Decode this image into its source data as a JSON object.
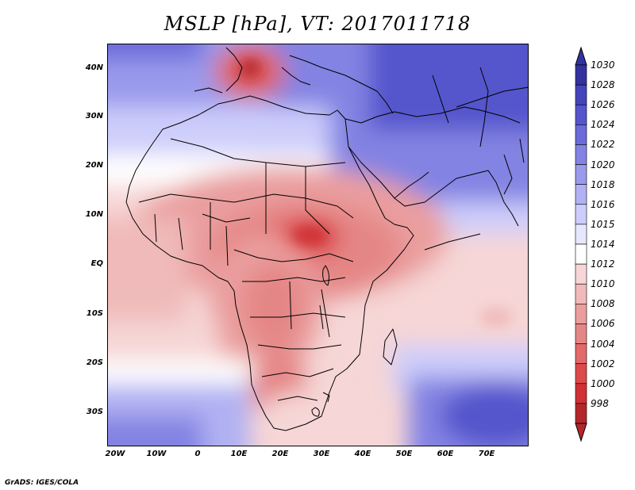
{
  "title": "MSLP [hPa], VT: 2017011718",
  "credit": "GrADS: IGES/COLA",
  "latitude_labels": [
    "40N",
    "30N",
    "20N",
    "10N",
    "EQ",
    "10S",
    "20S",
    "30S"
  ],
  "longitude_labels": [
    "20W",
    "10W",
    "0",
    "10E",
    "20E",
    "30E",
    "40E",
    "50E",
    "60E",
    "70E"
  ],
  "colorbar": {
    "levels": [
      998,
      1000,
      1002,
      1004,
      1006,
      1008,
      1010,
      1012,
      1014,
      1015,
      1016,
      1018,
      1020,
      1022,
      1024,
      1026,
      1028,
      1030
    ],
    "labels": [
      "998",
      "1000",
      "1002",
      "1004",
      "1006",
      "1008",
      "1010",
      "1012",
      "1014",
      "1015",
      "1016",
      "1018",
      "1020",
      "1022",
      "1024",
      "1026",
      "1028",
      "1030"
    ],
    "colors": [
      "#b3272c",
      "#cf3135",
      "#dc4a4a",
      "#e26a6a",
      "#e58686",
      "#ea9e9e",
      "#f0baba",
      "#f6d6d6",
      "#ffffff",
      "#e6e6ff",
      "#cdcdfb",
      "#b1b1f3",
      "#9a9aec",
      "#8383e3",
      "#6b6bd9",
      "#5555cc",
      "#4444bb",
      "#33339f"
    ]
  },
  "map": {
    "region": "Africa and Middle East",
    "lon_range": [
      -23,
      80
    ],
    "lat_range": [
      -37,
      45
    ]
  }
}
